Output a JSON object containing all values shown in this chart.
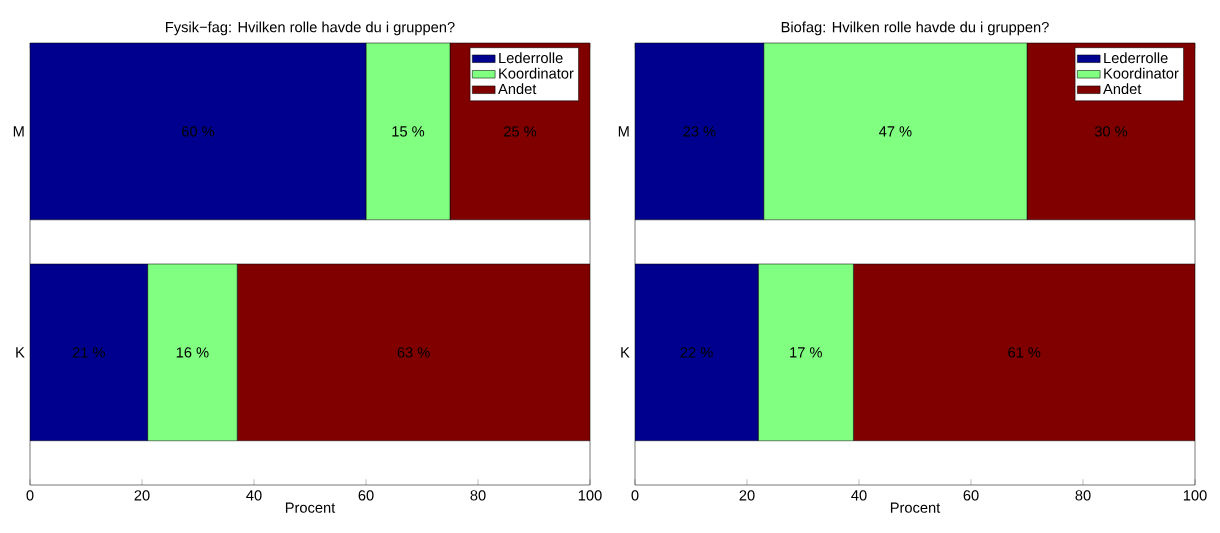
{
  "chart_data": [
    {
      "type": "bar",
      "orientation": "horizontal",
      "stacked": true,
      "title": "Fysik−fag: Hvilken rolle havde du i gruppen?",
      "xlabel": "Procent",
      "categories": [
        "M",
        "K"
      ],
      "xlim": [
        0,
        100
      ],
      "xticks": [
        0,
        20,
        40,
        60,
        80,
        100
      ],
      "legend": "top right",
      "series": [
        {
          "name": "Lederrolle",
          "color": "#00008f",
          "values": [
            60,
            21
          ],
          "value_labels": [
            "60 %",
            "21 %"
          ]
        },
        {
          "name": "Koordinator",
          "color": "#80ff80",
          "values": [
            15,
            16
          ],
          "value_labels": [
            "15 %",
            "16 %"
          ]
        },
        {
          "name": "Andet",
          "color": "#800000",
          "values": [
            25,
            63
          ],
          "value_labels": [
            "25 %",
            "63 %"
          ]
        }
      ]
    },
    {
      "type": "bar",
      "orientation": "horizontal",
      "stacked": true,
      "title": "Biofag: Hvilken rolle havde du i gruppen?",
      "xlabel": "Procent",
      "categories": [
        "M",
        "K"
      ],
      "xlim": [
        0,
        100
      ],
      "xticks": [
        0,
        20,
        40,
        60,
        80,
        100
      ],
      "legend": "top right",
      "series": [
        {
          "name": "Lederrolle",
          "color": "#00008f",
          "values": [
            23,
            22
          ],
          "value_labels": [
            "23 %",
            "22 %"
          ]
        },
        {
          "name": "Koordinator",
          "color": "#80ff80",
          "values": [
            47,
            17
          ],
          "value_labels": [
            "47 %",
            "17 %"
          ]
        },
        {
          "name": "Andet",
          "color": "#800000",
          "values": [
            30,
            61
          ],
          "value_labels": [
            "30 %",
            "61 %"
          ]
        }
      ]
    }
  ]
}
